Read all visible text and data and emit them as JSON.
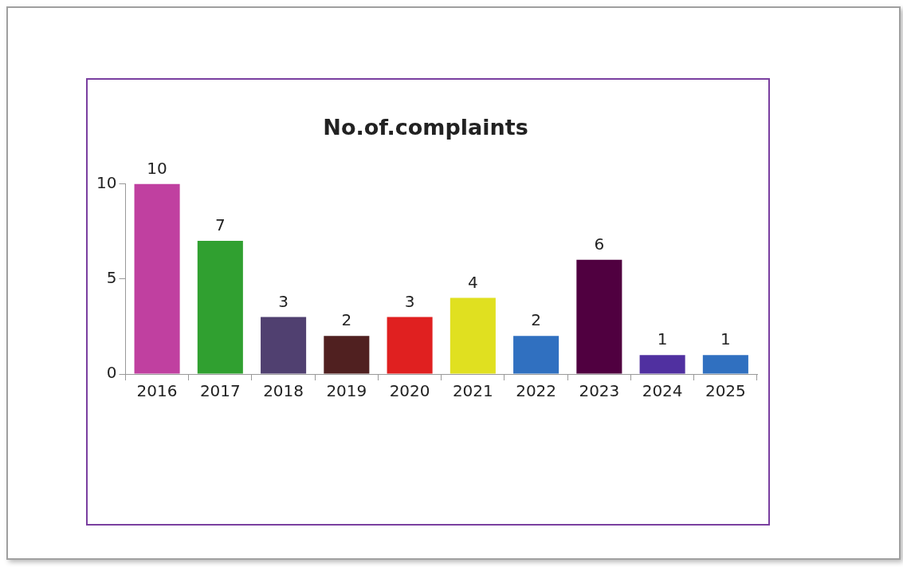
{
  "chart_data": {
    "type": "bar",
    "title": "No.of.complaints",
    "categories": [
      "2016",
      "2017",
      "2018",
      "2019",
      "2020",
      "2021",
      "2022",
      "2023",
      "2024",
      "2025"
    ],
    "values": [
      10,
      7,
      3,
      2,
      3,
      4,
      2,
      6,
      1,
      1
    ],
    "colors": [
      "#c040a0",
      "#30a030",
      "#504070",
      "#502020",
      "#e02020",
      "#e0e020",
      "#3070c0",
      "#500040",
      "#5030a0",
      "#3070c0"
    ],
    "ylim": [
      0,
      10
    ],
    "yticks": [
      0,
      5,
      10
    ],
    "data_labels": true,
    "legend": false,
    "grid": false
  }
}
